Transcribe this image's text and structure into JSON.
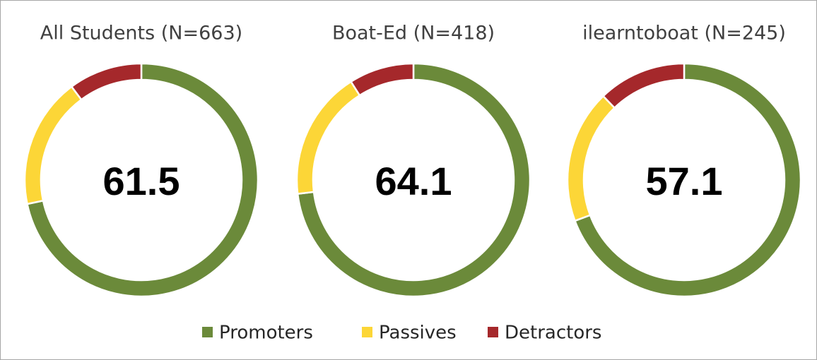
{
  "chart_data": [
    {
      "type": "donut",
      "title": "All Students (N=663)",
      "center_label": "61.5",
      "categories": [
        "Promoters",
        "Passives",
        "Detractors"
      ],
      "values": [
        71.7,
        18.1,
        10.2
      ],
      "colors": [
        "#6b8a3a",
        "#fcd637",
        "#a5282b"
      ]
    },
    {
      "type": "donut",
      "title": "Boat-Ed (N=418)",
      "center_label": "64.1",
      "categories": [
        "Promoters",
        "Passives",
        "Detractors"
      ],
      "values": [
        73.1,
        17.9,
        9.0
      ],
      "colors": [
        "#6b8a3a",
        "#fcd637",
        "#a5282b"
      ]
    },
    {
      "type": "donut",
      "title": "ilearntoboat (N=245)",
      "center_label": "57.1",
      "categories": [
        "Promoters",
        "Passives",
        "Detractors"
      ],
      "values": [
        69.3,
        18.5,
        12.2
      ],
      "colors": [
        "#6b8a3a",
        "#fcd637",
        "#a5282b"
      ]
    }
  ]
}
